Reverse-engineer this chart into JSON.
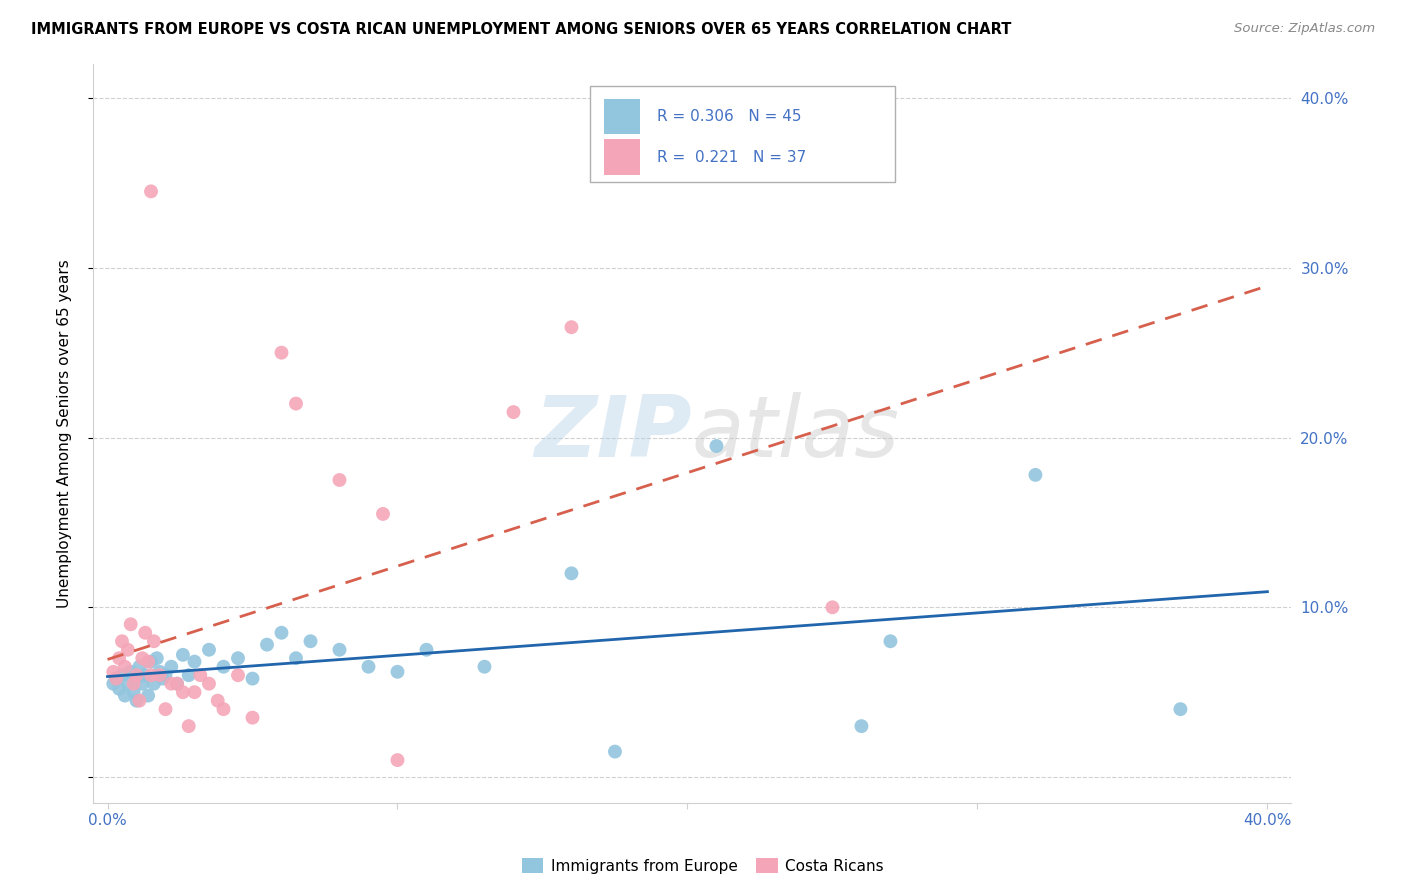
{
  "title": "IMMIGRANTS FROM EUROPE VS COSTA RICAN UNEMPLOYMENT AMONG SENIORS OVER 65 YEARS CORRELATION CHART",
  "source": "Source: ZipAtlas.com",
  "ylabel": "Unemployment Among Seniors over 65 years",
  "blue_R": "0.306",
  "blue_N": "45",
  "pink_R": "0.221",
  "pink_N": "37",
  "blue_color": "#92c5de",
  "pink_color": "#f4a6b8",
  "blue_line_color": "#2166ac",
  "pink_line_color": "#d6604d",
  "axis_color": "#4472c4",
  "grid_color": "#d0d0d0",
  "blue_points_x": [
    0.002,
    0.003,
    0.004,
    0.005,
    0.006,
    0.007,
    0.008,
    0.009,
    0.01,
    0.01,
    0.011,
    0.012,
    0.013,
    0.014,
    0.015,
    0.016,
    0.017,
    0.018,
    0.019,
    0.02,
    0.022,
    0.024,
    0.026,
    0.028,
    0.03,
    0.035,
    0.04,
    0.045,
    0.05,
    0.055,
    0.06,
    0.065,
    0.07,
    0.08,
    0.09,
    0.1,
    0.11,
    0.13,
    0.16,
    0.175,
    0.21,
    0.26,
    0.27,
    0.32,
    0.37
  ],
  "blue_points_y": [
    0.055,
    0.058,
    0.052,
    0.06,
    0.048,
    0.055,
    0.062,
    0.05,
    0.058,
    0.045,
    0.065,
    0.055,
    0.06,
    0.048,
    0.068,
    0.055,
    0.07,
    0.062,
    0.058,
    0.06,
    0.065,
    0.055,
    0.072,
    0.06,
    0.068,
    0.075,
    0.065,
    0.07,
    0.058,
    0.078,
    0.085,
    0.07,
    0.08,
    0.075,
    0.065,
    0.062,
    0.075,
    0.065,
    0.12,
    0.015,
    0.195,
    0.03,
    0.08,
    0.178,
    0.04
  ],
  "pink_points_x": [
    0.002,
    0.003,
    0.004,
    0.005,
    0.006,
    0.007,
    0.008,
    0.009,
    0.01,
    0.011,
    0.012,
    0.013,
    0.014,
    0.015,
    0.016,
    0.018,
    0.02,
    0.022,
    0.024,
    0.026,
    0.028,
    0.03,
    0.032,
    0.035,
    0.038,
    0.04,
    0.045,
    0.05,
    0.06,
    0.065,
    0.08,
    0.095,
    0.1,
    0.14,
    0.16,
    0.25,
    0.015
  ],
  "pink_points_y": [
    0.062,
    0.058,
    0.07,
    0.08,
    0.065,
    0.075,
    0.09,
    0.055,
    0.06,
    0.045,
    0.07,
    0.085,
    0.068,
    0.06,
    0.08,
    0.06,
    0.04,
    0.055,
    0.055,
    0.05,
    0.03,
    0.05,
    0.06,
    0.055,
    0.045,
    0.04,
    0.06,
    0.035,
    0.25,
    0.22,
    0.175,
    0.155,
    0.01,
    0.215,
    0.265,
    0.1,
    0.345
  ]
}
